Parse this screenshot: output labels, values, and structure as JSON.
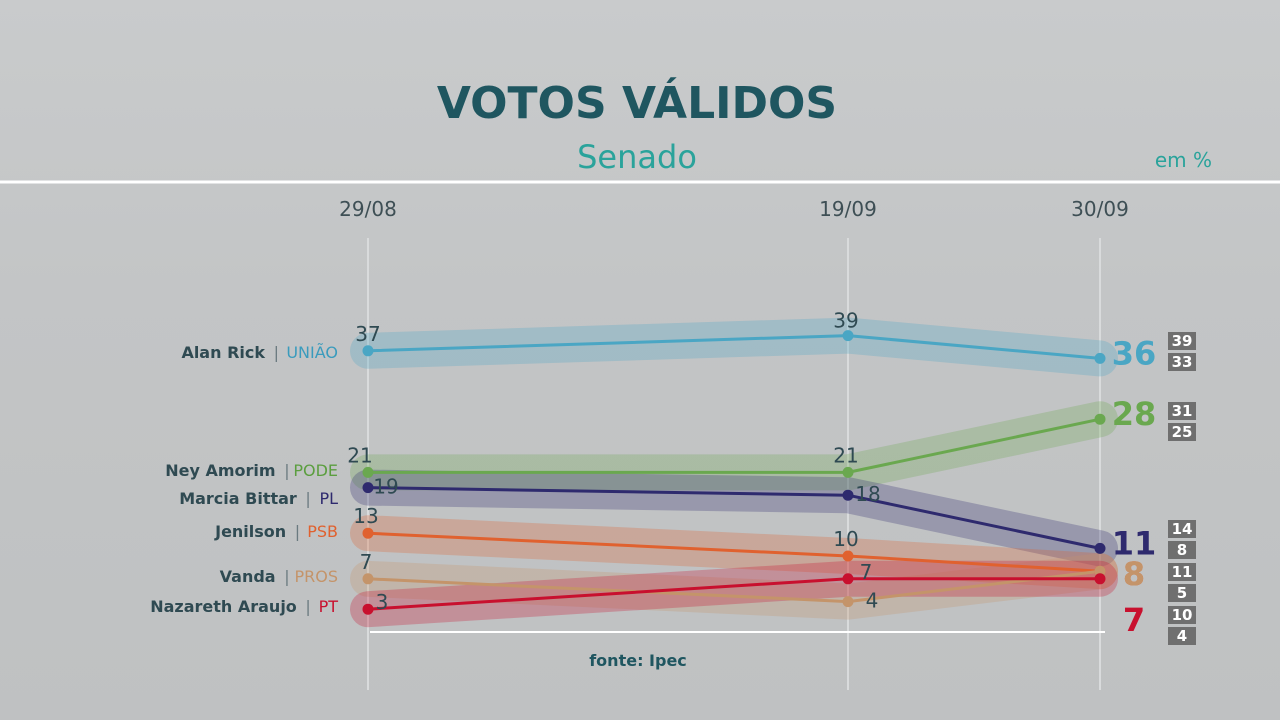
{
  "header": {
    "title": "VOTOS VÁLIDOS",
    "subtitle": "Senado",
    "unit": "em %"
  },
  "source": "fonte: Ipec",
  "chart_data": {
    "type": "line",
    "title": "VOTOS VÁLIDOS",
    "subtitle": "Senado",
    "ylabel": "em %",
    "x": [
      "29/08",
      "19/09",
      "30/09"
    ],
    "grid": "vertical lines at each date",
    "series": [
      {
        "name": "Alan Rick",
        "party": "UNIÃO",
        "color": "#4aa6c4",
        "partyColor": "#3a9bbd",
        "values": [
          37,
          39,
          36
        ],
        "range": [
          "39",
          "33"
        ]
      },
      {
        "name": "Ney Amorim",
        "party": "PODE",
        "color": "#6aa84f",
        "partyColor": "#5b9e3f",
        "values": [
          21,
          21,
          28
        ],
        "range": [
          "31",
          "25"
        ]
      },
      {
        "name": "Marcia Bittar",
        "party": "PL",
        "color": "#2e2a6e",
        "partyColor": "#2e2a6e",
        "values": [
          19,
          18,
          11
        ],
        "range": [
          "14",
          "8"
        ]
      },
      {
        "name": "Jenilson",
        "party": "PSB",
        "color": "#e0612f",
        "partyColor": "#e0612f",
        "values": [
          13,
          10,
          8
        ],
        "range": [
          "11",
          "5"
        ]
      },
      {
        "name": "Vanda",
        "party": "PROS",
        "color": "#c4946a",
        "partyColor": "#c4946a",
        "values": [
          7,
          4,
          8
        ],
        "range": [
          "10",
          "4"
        ]
      },
      {
        "name": "Nazareth Araujo",
        "party": "PT",
        "color": "#c8102e",
        "partyColor": "#c8102e",
        "values": [
          3,
          7,
          7
        ]
      }
    ]
  }
}
